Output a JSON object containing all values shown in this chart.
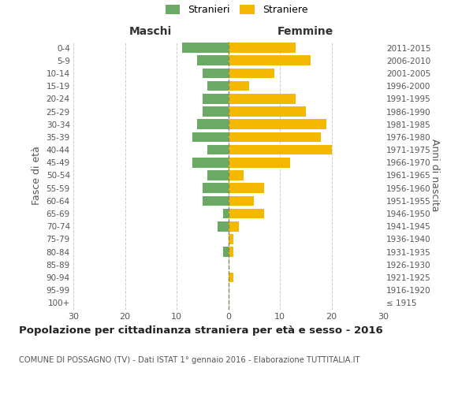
{
  "age_groups": [
    "100+",
    "95-99",
    "90-94",
    "85-89",
    "80-84",
    "75-79",
    "70-74",
    "65-69",
    "60-64",
    "55-59",
    "50-54",
    "45-49",
    "40-44",
    "35-39",
    "30-34",
    "25-29",
    "20-24",
    "15-19",
    "10-14",
    "5-9",
    "0-4"
  ],
  "birth_years": [
    "≤ 1915",
    "1916-1920",
    "1921-1925",
    "1926-1930",
    "1931-1935",
    "1936-1940",
    "1941-1945",
    "1946-1950",
    "1951-1955",
    "1956-1960",
    "1961-1965",
    "1966-1970",
    "1971-1975",
    "1976-1980",
    "1981-1985",
    "1986-1990",
    "1991-1995",
    "1996-2000",
    "2001-2005",
    "2006-2010",
    "2011-2015"
  ],
  "males": [
    0,
    0,
    0,
    0,
    1,
    0,
    2,
    1,
    5,
    5,
    4,
    7,
    4,
    7,
    6,
    5,
    5,
    4,
    5,
    6,
    9
  ],
  "females": [
    0,
    0,
    1,
    0,
    1,
    1,
    2,
    7,
    5,
    7,
    3,
    12,
    20,
    18,
    19,
    15,
    13,
    4,
    9,
    16,
    13
  ],
  "male_color": "#6aaa64",
  "female_color": "#f5b800",
  "dashed_color": "#888855",
  "grid_color": "#cccccc",
  "bg_color": "#ffffff",
  "title": "Popolazione per cittadinanza straniera per età e sesso - 2016",
  "subtitle": "COMUNE DI POSSAGNO (TV) - Dati ISTAT 1° gennaio 2016 - Elaborazione TUTTITALIA.IT",
  "xlabel_left": "Maschi",
  "xlabel_right": "Femmine",
  "ylabel_left": "Fasce di età",
  "ylabel_right": "Anni di nascita",
  "legend_male": "Stranieri",
  "legend_female": "Straniere",
  "xlim": 30
}
